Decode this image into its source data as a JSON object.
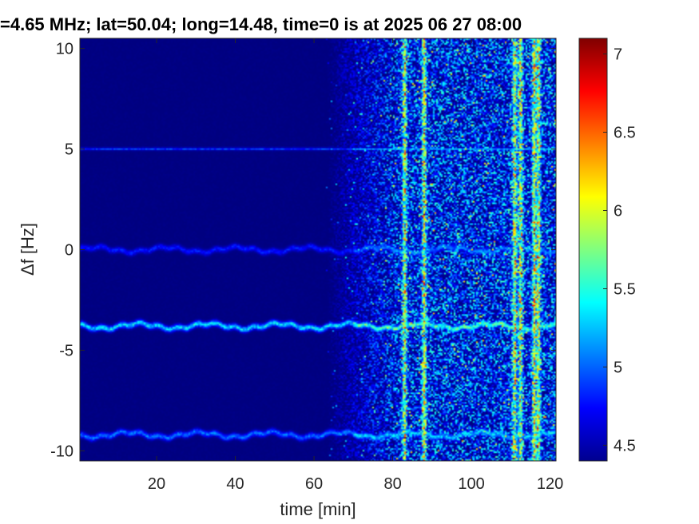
{
  "chart_data": {
    "type": "heatmap",
    "title": "=4.65 MHz;  lat=50.04; long=14.48, time=0 is at 2025 06 27 08:00",
    "xlabel": "time [min]",
    "ylabel": "Δf [Hz]",
    "xlim": [
      0.5,
      121.5
    ],
    "ylim": [
      -10.5,
      10.5
    ],
    "x_ticks": [
      20,
      40,
      60,
      80,
      100,
      120
    ],
    "x_tick_labels": [
      "20",
      "40",
      "60",
      "80",
      "100",
      "120"
    ],
    "y_ticks": [
      -10,
      -5,
      0,
      5,
      10
    ],
    "y_tick_labels": [
      "-10",
      "-5",
      "0",
      "5",
      "10"
    ],
    "colormap": "jet",
    "colorbar": {
      "range": [
        4.4,
        7.1
      ],
      "ticks": [
        4.5,
        5,
        5.5,
        6,
        6.5,
        7
      ],
      "tick_labels": [
        "4.5",
        "5",
        "5.5",
        "6",
        "6.5",
        "7"
      ]
    },
    "traces": [
      {
        "freq_hz": 5.0,
        "from_min": 0,
        "to_min": 120,
        "level": 5.0
      },
      {
        "freq_hz": 0.0,
        "from_min": 0,
        "to_min": 120,
        "level": 4.9
      },
      {
        "freq_hz": -3.8,
        "from_min": 0,
        "to_min": 120,
        "level": 5.6
      },
      {
        "freq_hz": -9.2,
        "from_min": 0,
        "to_min": 120,
        "level": 5.2
      }
    ],
    "broadband_columns_min": [
      83,
      88,
      111,
      112.5,
      116,
      117
    ],
    "noise_onset_min": 63,
    "noise_level": 4.7,
    "grid": false
  }
}
